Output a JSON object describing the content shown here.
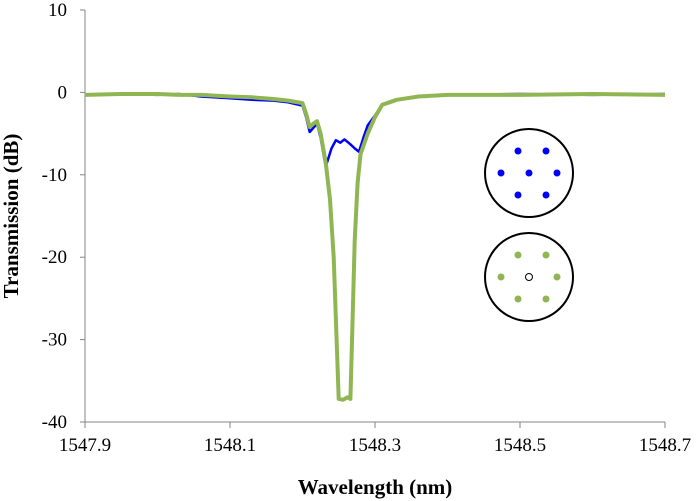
{
  "chart_data": {
    "type": "line",
    "xlabel": "Wavelength (nm)",
    "ylabel": "Transmission (dB)",
    "xlim": [
      1547.9,
      1548.7
    ],
    "ylim": [
      -40,
      10
    ],
    "x_ticks": [
      "1547.9",
      "1548.1",
      "1548.3",
      "1548.5",
      "1548.7"
    ],
    "y_ticks": [
      "10",
      "0",
      "-10",
      "-20",
      "-30",
      "-40"
    ],
    "grid": false,
    "series": [
      {
        "color": "#0000ff",
        "points": [
          [
            1547.9,
            -0.3
          ],
          [
            1547.95,
            -0.2
          ],
          [
            1548.0,
            -0.3
          ],
          [
            1548.03,
            -0.2
          ],
          [
            1548.06,
            -0.5
          ],
          [
            1548.1,
            -0.7
          ],
          [
            1548.13,
            -0.9
          ],
          [
            1548.16,
            -1.0
          ],
          [
            1548.18,
            -1.2
          ],
          [
            1548.2,
            -1.6
          ],
          [
            1548.205,
            -3.0
          ],
          [
            1548.21,
            -4.8
          ],
          [
            1548.215,
            -4.3
          ],
          [
            1548.22,
            -3.8
          ],
          [
            1548.225,
            -5.5
          ],
          [
            1548.232,
            -9.0
          ],
          [
            1548.24,
            -6.8
          ],
          [
            1548.246,
            -5.8
          ],
          [
            1548.252,
            -6.1
          ],
          [
            1548.258,
            -5.7
          ],
          [
            1548.266,
            -6.3
          ],
          [
            1548.272,
            -6.8
          ],
          [
            1548.278,
            -7.2
          ],
          [
            1548.284,
            -5.5
          ],
          [
            1548.29,
            -4.0
          ],
          [
            1548.3,
            -2.8
          ],
          [
            1548.31,
            -1.5
          ],
          [
            1548.33,
            -0.9
          ],
          [
            1548.36,
            -0.5
          ],
          [
            1548.4,
            -0.3
          ],
          [
            1548.5,
            -0.2
          ],
          [
            1548.6,
            -0.3
          ],
          [
            1548.7,
            -0.2
          ]
        ]
      },
      {
        "color": "#8fb652",
        "points": [
          [
            1547.9,
            -0.3
          ],
          [
            1547.95,
            -0.2
          ],
          [
            1548.0,
            -0.2
          ],
          [
            1548.03,
            -0.3
          ],
          [
            1548.06,
            -0.3
          ],
          [
            1548.1,
            -0.5
          ],
          [
            1548.13,
            -0.6
          ],
          [
            1548.16,
            -0.8
          ],
          [
            1548.18,
            -1.0
          ],
          [
            1548.2,
            -1.3
          ],
          [
            1548.205,
            -2.6
          ],
          [
            1548.21,
            -4.2
          ],
          [
            1548.215,
            -3.8
          ],
          [
            1548.22,
            -3.5
          ],
          [
            1548.225,
            -5.0
          ],
          [
            1548.232,
            -8.5
          ],
          [
            1548.238,
            -13.0
          ],
          [
            1548.243,
            -20.0
          ],
          [
            1548.247,
            -30.0
          ],
          [
            1548.25,
            -37.2
          ],
          [
            1548.256,
            -37.3
          ],
          [
            1548.262,
            -37.0
          ],
          [
            1548.266,
            -37.2
          ],
          [
            1548.269,
            -28.0
          ],
          [
            1548.272,
            -18.0
          ],
          [
            1548.276,
            -11.0
          ],
          [
            1548.28,
            -7.5
          ],
          [
            1548.29,
            -5.0
          ],
          [
            1548.3,
            -3.0
          ],
          [
            1548.31,
            -1.5
          ],
          [
            1548.33,
            -0.9
          ],
          [
            1548.36,
            -0.5
          ],
          [
            1548.4,
            -0.3
          ],
          [
            1548.5,
            -0.3
          ],
          [
            1548.6,
            -0.2
          ],
          [
            1548.7,
            -0.3
          ]
        ]
      }
    ],
    "insets": [
      {
        "name": "blue-fiber",
        "dot_color": "#0000ff",
        "center_dot_color": "#0000ff",
        "center_dot_hollow": false
      },
      {
        "name": "green-fiber",
        "dot_color": "#8fb652",
        "center_dot_color": "#000000",
        "center_dot_hollow": true
      }
    ]
  }
}
